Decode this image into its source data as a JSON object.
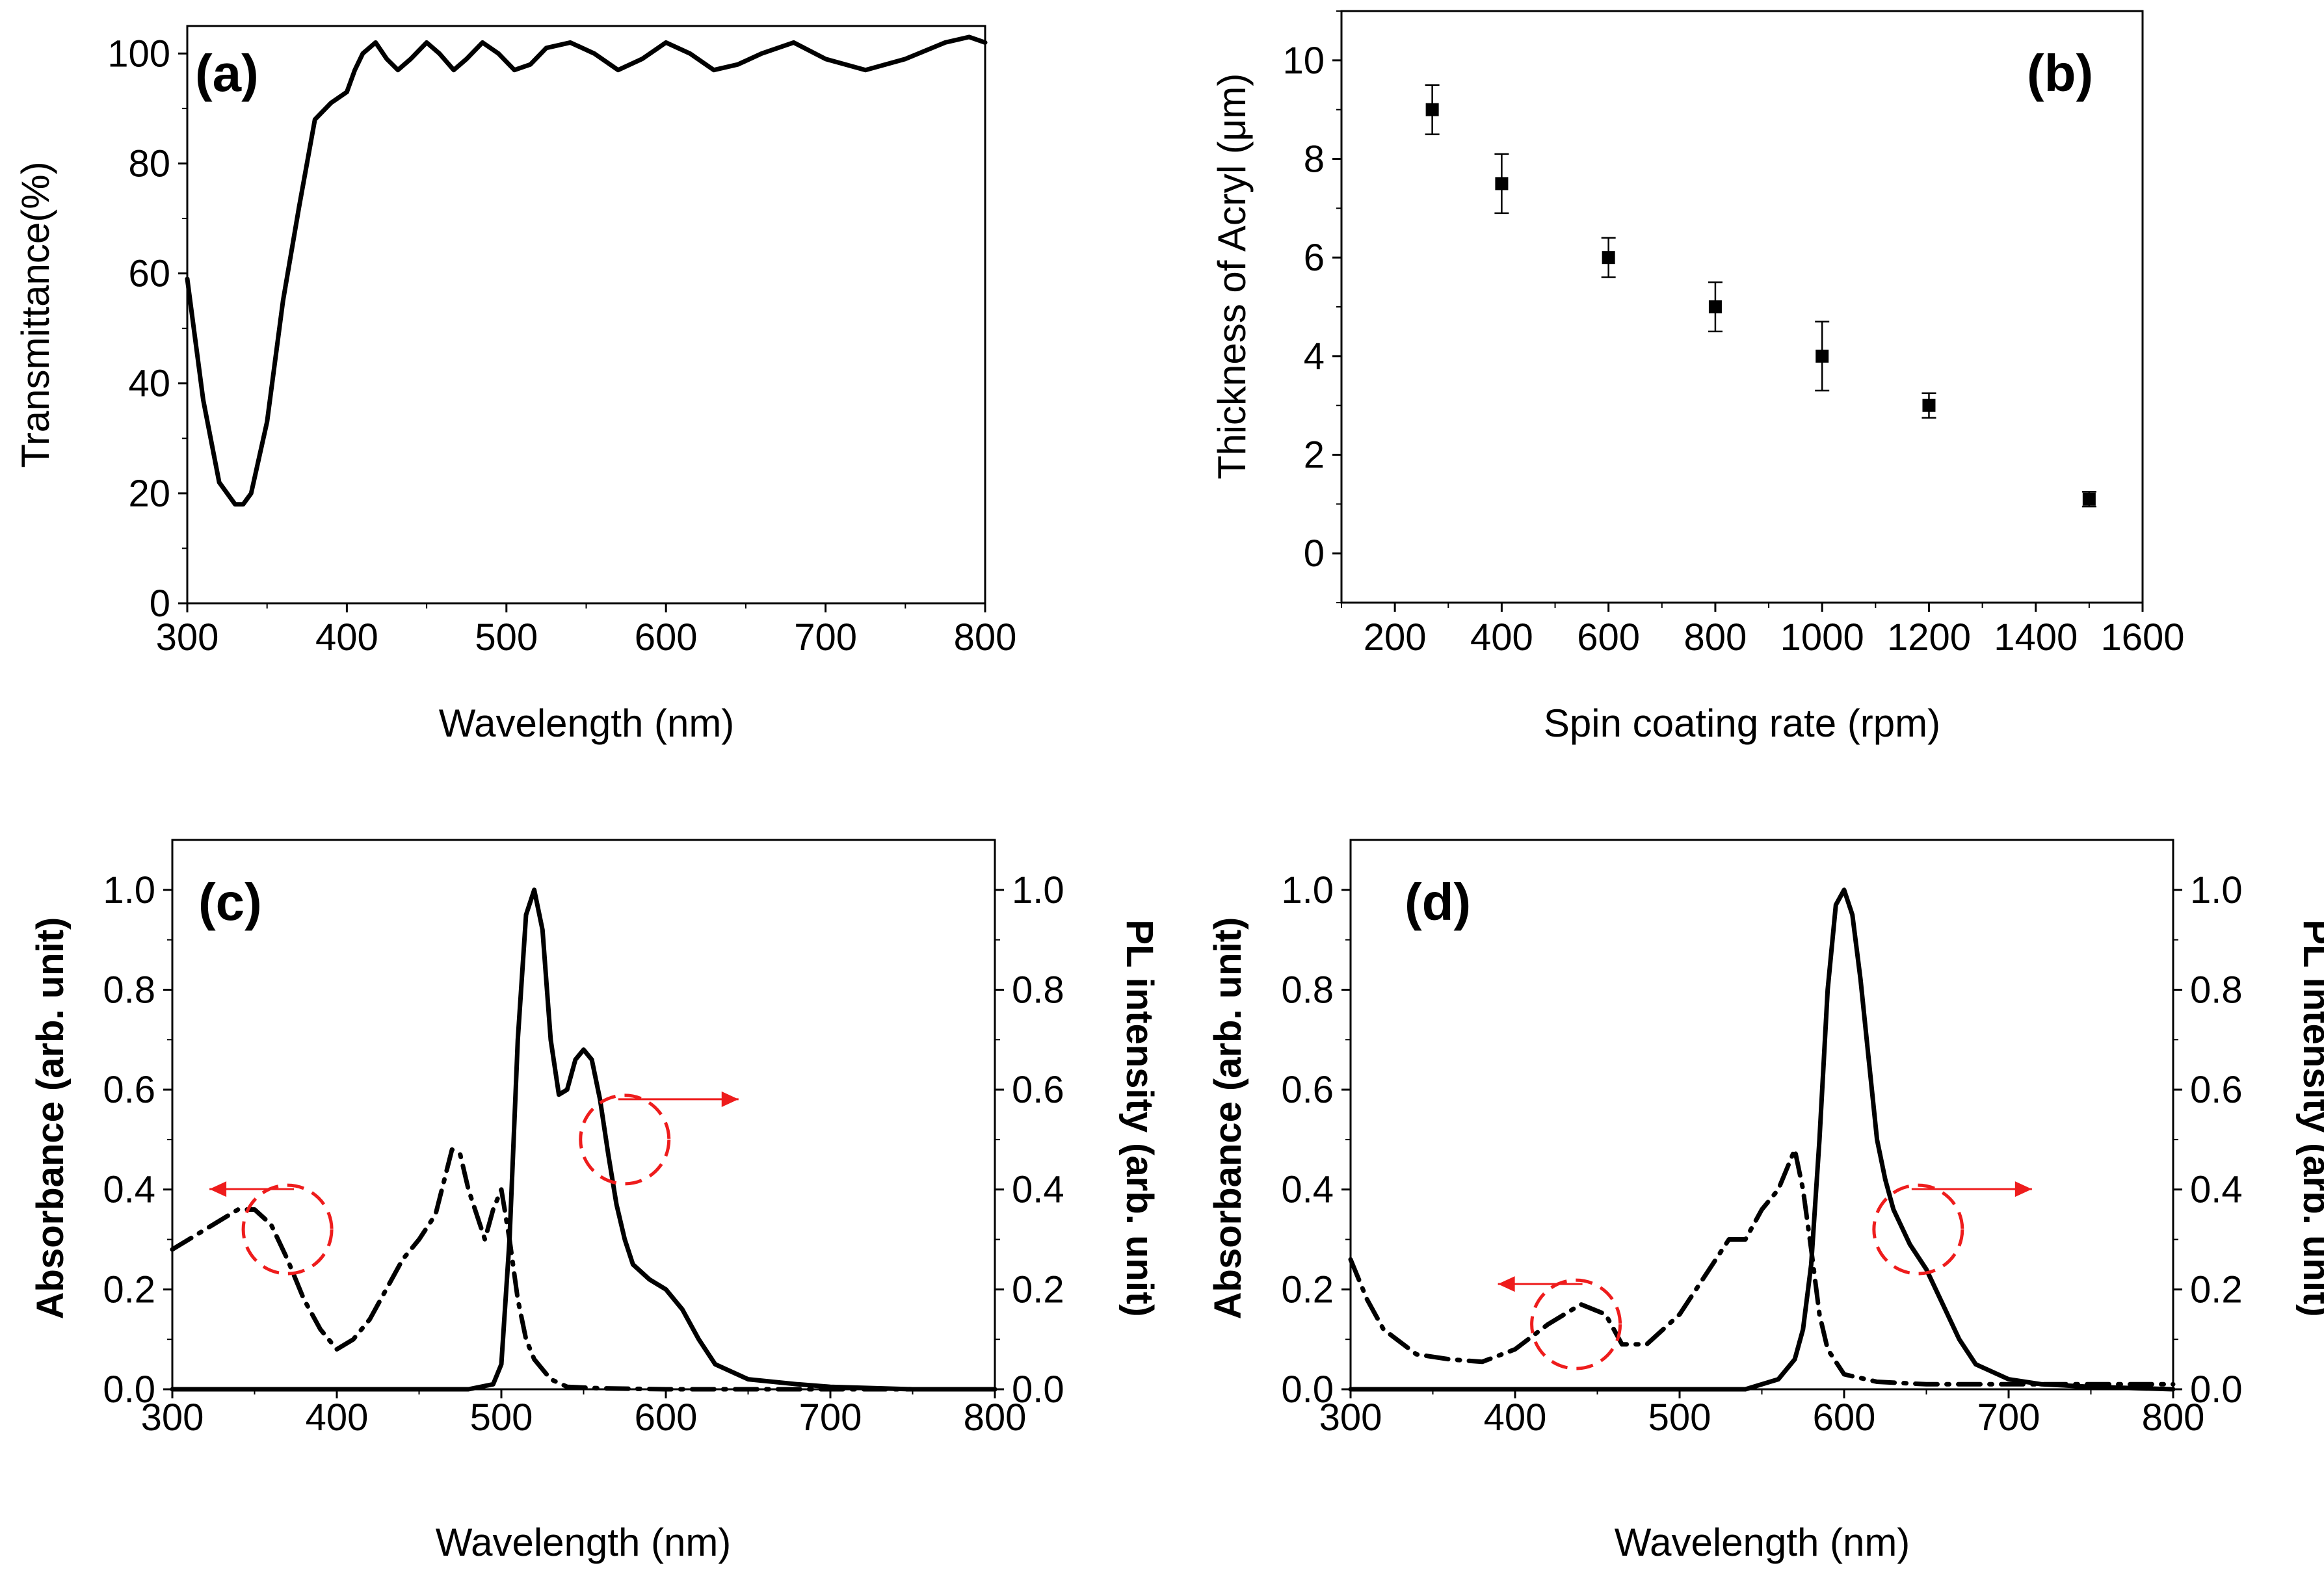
{
  "chart_data": [
    {
      "id": "a",
      "panel_label": "(a)",
      "type": "line",
      "xlabel": "Wavelength (nm)",
      "ylabel": "Transmittance(%)",
      "xlim": [
        300,
        800
      ],
      "ylim": [
        0,
        105
      ],
      "xticks": [
        300,
        400,
        500,
        600,
        700,
        800
      ],
      "yticks": [
        0,
        20,
        40,
        60,
        80,
        100
      ],
      "series": [
        {
          "name": "Transmittance",
          "style": "solid",
          "x": [
            300,
            310,
            320,
            330,
            335,
            340,
            350,
            360,
            370,
            380,
            390,
            400,
            405,
            410,
            418,
            425,
            432,
            440,
            450,
            458,
            467,
            475,
            485,
            495,
            505,
            515,
            525,
            540,
            555,
            570,
            585,
            600,
            615,
            630,
            645,
            660,
            680,
            700,
            725,
            750,
            775,
            790,
            800
          ],
          "y": [
            59,
            37,
            22,
            18,
            18,
            20,
            33,
            55,
            72,
            88,
            91,
            93,
            97,
            100,
            102,
            99,
            97,
            99,
            102,
            100,
            97,
            99,
            102,
            100,
            97,
            98,
            101,
            102,
            100,
            97,
            99,
            102,
            100,
            97,
            98,
            100,
            102,
            99,
            97,
            99,
            102,
            103,
            102
          ]
        }
      ]
    },
    {
      "id": "b",
      "panel_label": "(b)",
      "type": "scatter",
      "xlabel": "Spin coating rate (rpm)",
      "ylabel": "Thickness of Acryl (μm)",
      "xlim": [
        100,
        1600
      ],
      "ylim": [
        -1,
        11
      ],
      "xticks": [
        200,
        400,
        600,
        800,
        1000,
        1200,
        1400,
        1600
      ],
      "yticks": [
        0,
        2,
        4,
        6,
        8,
        10
      ],
      "series": [
        {
          "name": "Thickness",
          "x": [
            270,
            400,
            600,
            800,
            1000,
            1200,
            1500
          ],
          "y": [
            9.0,
            7.5,
            6.0,
            5.0,
            4.0,
            3.0,
            1.1
          ],
          "err": [
            0.5,
            0.6,
            0.4,
            0.5,
            0.7,
            0.25,
            0.15
          ]
        }
      ]
    },
    {
      "id": "c",
      "panel_label": "(c)",
      "type": "line",
      "xlabel": "Wavelength (nm)",
      "ylabel": "Absorbance (arb. unit)",
      "ylabel_right": "PL intensity (arb. unit)",
      "xlim": [
        300,
        800
      ],
      "ylim": [
        0,
        1.1
      ],
      "xticks": [
        300,
        400,
        500,
        600,
        700,
        800
      ],
      "yticks": [
        "0.0",
        "0.2",
        "0.4",
        "0.6",
        "0.8",
        "1.0"
      ],
      "series": [
        {
          "name": "Absorbance",
          "style": "dash-dot",
          "axis": "left",
          "x": [
            300,
            320,
            340,
            350,
            360,
            370,
            380,
            390,
            400,
            410,
            420,
            430,
            440,
            450,
            460,
            470,
            475,
            480,
            490,
            495,
            500,
            505,
            510,
            515,
            520,
            530,
            540,
            560,
            600,
            650,
            700,
            800
          ],
          "y": [
            0.28,
            0.32,
            0.36,
            0.36,
            0.33,
            0.26,
            0.18,
            0.12,
            0.08,
            0.1,
            0.14,
            0.2,
            0.26,
            0.3,
            0.35,
            0.48,
            0.47,
            0.4,
            0.3,
            0.36,
            0.4,
            0.3,
            0.18,
            0.1,
            0.06,
            0.02,
            0.005,
            0.002,
            0.0,
            0.0,
            0.0,
            0.0
          ]
        },
        {
          "name": "PL",
          "style": "solid",
          "axis": "right",
          "x": [
            300,
            450,
            480,
            495,
            500,
            505,
            510,
            515,
            520,
            525,
            530,
            535,
            540,
            545,
            550,
            555,
            560,
            565,
            570,
            575,
            580,
            590,
            600,
            610,
            620,
            630,
            650,
            680,
            700,
            750,
            800
          ],
          "y": [
            0.0,
            0.0,
            0.0,
            0.01,
            0.05,
            0.3,
            0.7,
            0.95,
            1.0,
            0.92,
            0.7,
            0.59,
            0.6,
            0.66,
            0.68,
            0.66,
            0.58,
            0.47,
            0.37,
            0.3,
            0.25,
            0.22,
            0.2,
            0.16,
            0.1,
            0.05,
            0.02,
            0.01,
            0.005,
            0.0,
            0.0
          ]
        }
      ],
      "annotations": [
        {
          "type": "circle-arrow",
          "x": 370,
          "y": 0.32,
          "direction": "left",
          "color": "#ee1c1c"
        },
        {
          "type": "circle-arrow",
          "x": 575,
          "y": 0.5,
          "direction": "right",
          "color": "#ee1c1c"
        }
      ]
    },
    {
      "id": "d",
      "panel_label": "(d)",
      "type": "line",
      "xlabel": "Wavelength (nm)",
      "ylabel": "Absorbance (arb. unit)",
      "ylabel_right": "PL intensity (arb. unit)",
      "xlim": [
        300,
        800
      ],
      "ylim": [
        0,
        1.1
      ],
      "xticks": [
        300,
        400,
        500,
        600,
        700,
        800
      ],
      "yticks": [
        "0.0",
        "0.2",
        "0.4",
        "0.6",
        "0.8",
        "1.0"
      ],
      "series": [
        {
          "name": "Absorbance",
          "style": "dash-dot",
          "axis": "left",
          "x": [
            300,
            310,
            320,
            340,
            360,
            380,
            400,
            420,
            440,
            455,
            465,
            480,
            500,
            520,
            530,
            540,
            550,
            560,
            570,
            575,
            580,
            585,
            590,
            600,
            620,
            650,
            700,
            750,
            800
          ],
          "y": [
            0.26,
            0.18,
            0.12,
            0.07,
            0.06,
            0.055,
            0.08,
            0.13,
            0.17,
            0.15,
            0.09,
            0.09,
            0.15,
            0.25,
            0.3,
            0.3,
            0.36,
            0.4,
            0.48,
            0.4,
            0.28,
            0.15,
            0.08,
            0.03,
            0.015,
            0.01,
            0.01,
            0.01,
            0.01
          ]
        },
        {
          "name": "PL",
          "style": "solid",
          "axis": "right",
          "x": [
            300,
            540,
            560,
            570,
            575,
            580,
            585,
            590,
            595,
            600,
            605,
            610,
            615,
            620,
            625,
            630,
            640,
            650,
            660,
            670,
            680,
            700,
            720,
            750,
            800
          ],
          "y": [
            0.0,
            0.0,
            0.02,
            0.06,
            0.12,
            0.25,
            0.5,
            0.8,
            0.97,
            1.0,
            0.95,
            0.82,
            0.66,
            0.5,
            0.42,
            0.36,
            0.29,
            0.24,
            0.17,
            0.1,
            0.05,
            0.02,
            0.01,
            0.005,
            0.0
          ]
        }
      ],
      "annotations": [
        {
          "type": "circle-arrow",
          "x": 437,
          "y": 0.13,
          "direction": "left",
          "color": "#ee1c1c"
        },
        {
          "type": "circle-arrow",
          "x": 645,
          "y": 0.32,
          "direction": "right",
          "color": "#ee1c1c"
        }
      ]
    }
  ]
}
